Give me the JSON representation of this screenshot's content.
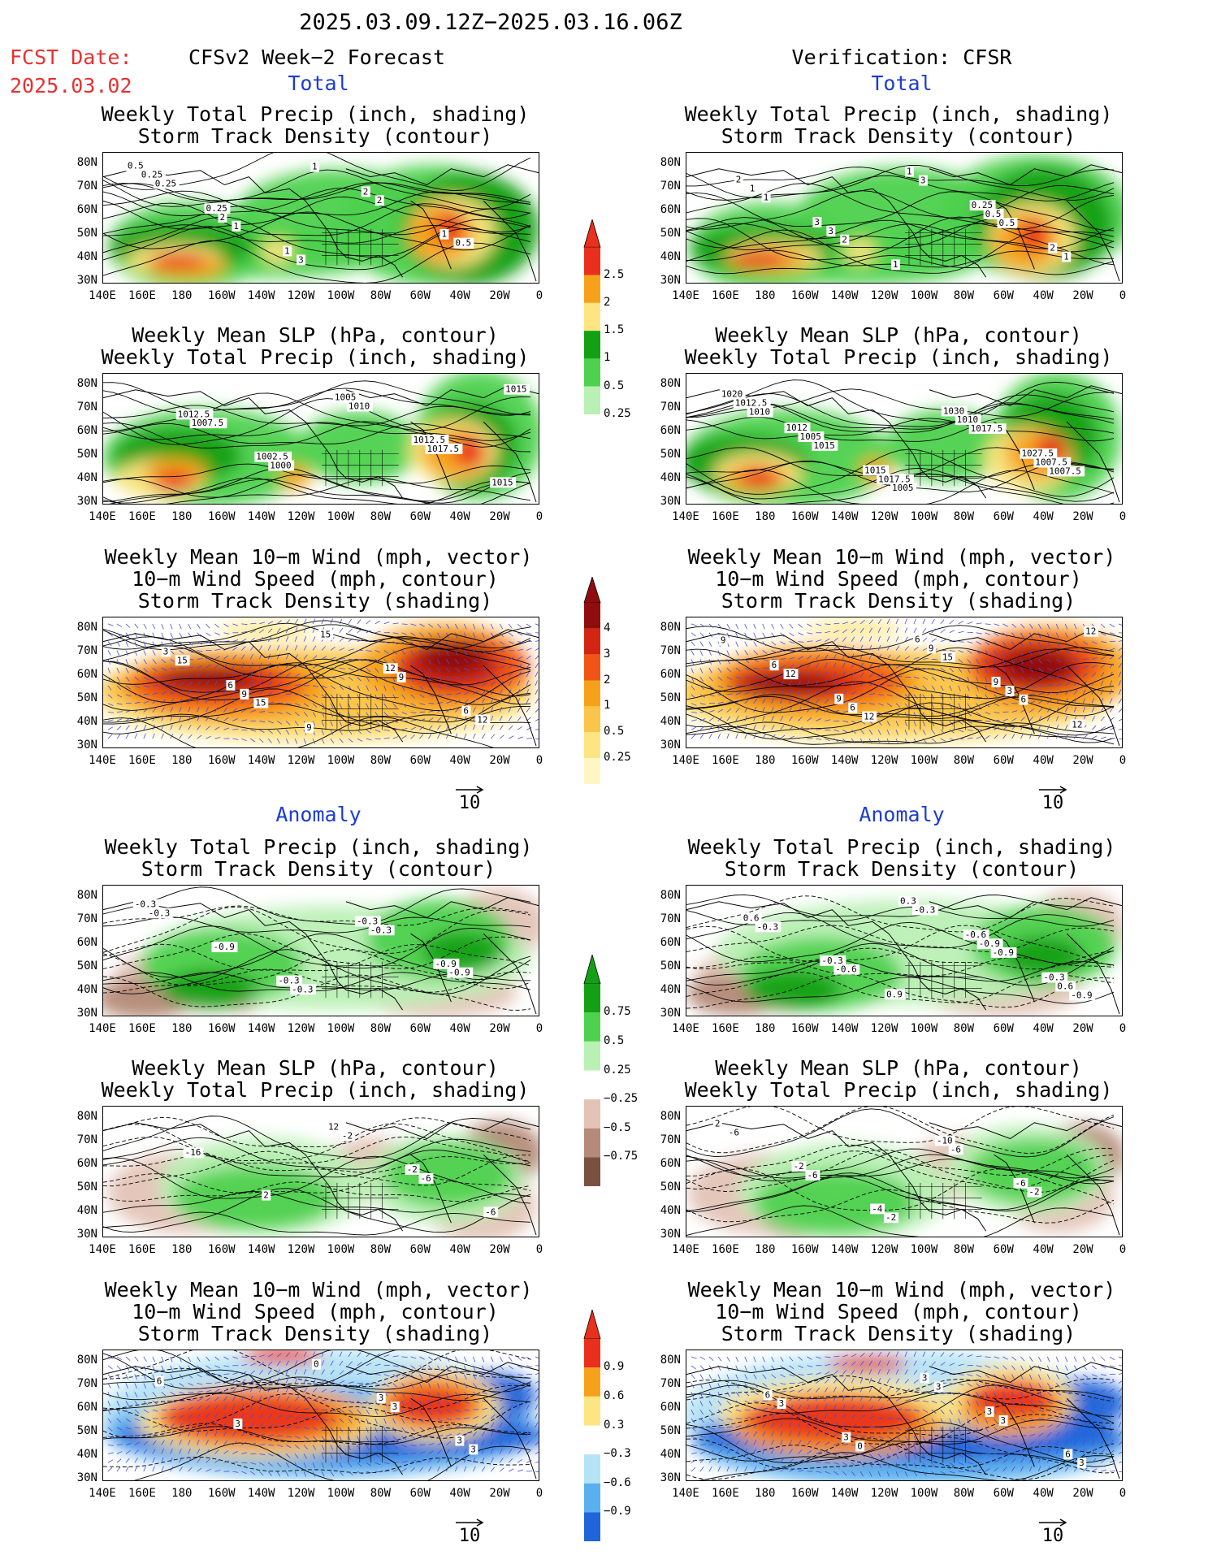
{
  "header": {
    "date_range": "2025.03.09.12Z−2025.03.16.06Z",
    "fcst_date_label": "FCST Date:",
    "fcst_date_value": "2025.03.02",
    "left_title": "CFSv2 Week−2 Forecast",
    "right_title": "Verification: CFSR"
  },
  "sections": {
    "total": "Total",
    "anomaly": "Anomaly"
  },
  "panel_titles": {
    "precip_track": [
      "Weekly Total Precip (inch, shading)",
      "Storm Track Density (contour)"
    ],
    "slp_precip": [
      "Weekly Mean SLP (hPa, contour)",
      "Weekly Total Precip (inch, shading)"
    ],
    "wind_track": [
      "Weekly Mean 10−m Wind (mph, vector)",
      "10−m Wind Speed (mph, contour)",
      "Storm Track Density (shading)"
    ]
  },
  "axes": {
    "lat_labels": [
      "80N",
      "70N",
      "60N",
      "50N",
      "40N",
      "30N"
    ],
    "lon_labels": [
      "140E",
      "160E",
      "180",
      "160W",
      "140W",
      "120W",
      "100W",
      "80W",
      "60W",
      "40W",
      "20W",
      "0"
    ]
  },
  "vector_reference": "10",
  "colorbars": {
    "precip_total": {
      "labels": [
        "2.5",
        "2",
        "1.5",
        "1",
        "0.5",
        "0.25"
      ],
      "colors": [
        "#e8301c",
        "#f7a11a",
        "#fde682",
        "#14a014",
        "#4ed14e",
        "#b9f0b4"
      ]
    },
    "track_total": {
      "labels": [
        "4",
        "3",
        "2",
        "1",
        "0.5",
        "0.25"
      ],
      "colors": [
        "#8f0d0d",
        "#d32512",
        "#f05516",
        "#f7a11a",
        "#fbc54a",
        "#fde682",
        "#fff6c4"
      ]
    },
    "precip_anom": {
      "labels": [
        "0.75",
        "0.5",
        "0.25",
        "−0.25",
        "−0.5",
        "−0.75"
      ],
      "colors": [
        "#14a014",
        "#4ed14e",
        "#b9f0b4",
        "#ffffff",
        "#e3c3b6",
        "#b58a79",
        "#7a5040"
      ]
    },
    "track_anom": {
      "labels": [
        "0.9",
        "0.6",
        "0.3",
        "−0.3",
        "−0.6",
        "−0.9"
      ],
      "colors": [
        "#e8301c",
        "#f7a11a",
        "#fde682",
        "#ffffff",
        "#b5e3f6",
        "#5ab0ee",
        "#1f64d8"
      ]
    }
  },
  "panels": {
    "f_precip": {
      "labels": [
        "0.5",
        "0.25",
        "1",
        "2",
        "1",
        "0.25",
        "2",
        "3",
        "2",
        "0.5",
        "0.25",
        "1",
        "1"
      ]
    },
    "v_precip": {
      "labels": [
        "2",
        "3",
        "1",
        "0.25",
        "2",
        "1",
        "3",
        "1",
        "0.5",
        "1",
        "1",
        "2",
        "3",
        "0.5"
      ]
    },
    "f_slp": {
      "labels": [
        "1012.5",
        "1002.5",
        "1005",
        "1012.5",
        "1015",
        "1007.5",
        "1000",
        "1010",
        "1017.5",
        "1015"
      ]
    },
    "v_slp": {
      "labels": [
        "1012",
        "1015",
        "1030",
        "1027.5",
        "1020",
        "1005",
        "1017.5",
        "1010",
        "1007.5",
        "1012.5",
        "1015",
        "1005",
        "1017.5",
        "1007.5",
        "1010"
      ]
    },
    "f_wind": {
      "labels": [
        "6",
        "9",
        "12",
        "6",
        "3",
        "9",
        "15",
        "9",
        "12",
        "15",
        "15"
      ]
    },
    "v_wind": {
      "labels": [
        "9",
        "6",
        "9",
        "12",
        "6",
        "6",
        "9",
        "3",
        "12",
        "12",
        "12",
        "15",
        "6",
        "9"
      ]
    },
    "fa_precip": {
      "labels": [
        "-0.3",
        "-0.3",
        "-0.9",
        "-0.3",
        "-0.9",
        "-0.3",
        "-0.3",
        "-0.9",
        "-0.3"
      ]
    },
    "va_precip": {
      "labels": [
        "0.9",
        "-0.6",
        "-0.3",
        "0.6",
        "-0.3",
        "0.3",
        "-0.9",
        "0.6",
        "-0.3",
        "-0.6",
        "-0.3",
        "-0.9",
        "-0.9"
      ]
    },
    "fa_slp": {
      "labels": [
        "12",
        "-2",
        "-6",
        "-16",
        "2",
        "-2",
        "-6"
      ]
    },
    "va_slp": {
      "labels": [
        "-10",
        "-6",
        "2",
        "-2",
        "-4",
        "-6",
        "-2",
        "-6",
        "-6",
        "-2"
      ]
    },
    "fa_wind": {
      "labels": [
        "3",
        "3",
        "6",
        "3",
        "0",
        "3",
        "3"
      ]
    },
    "va_wind": {
      "labels": [
        "3",
        "6",
        "6",
        "3",
        "3",
        "3",
        "3",
        "3",
        "0",
        "3"
      ]
    }
  }
}
